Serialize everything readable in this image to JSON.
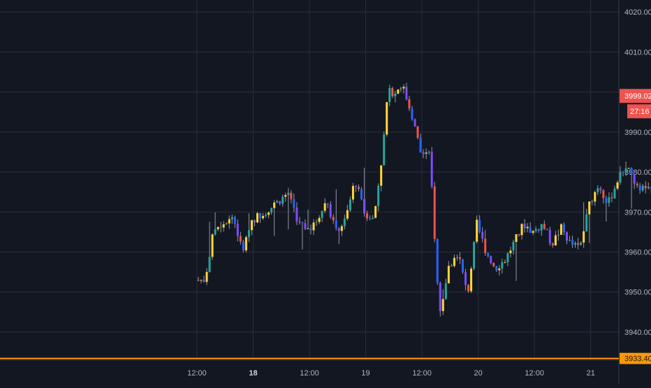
{
  "colors": {
    "background": "#131722",
    "grid": "#2a2e39",
    "axis_line": "#363a45",
    "axis_text": "#b2b5be",
    "palette": [
      "#ef5350",
      "#26a69a",
      "#fdd835",
      "#2962ff",
      "#7c4dff"
    ],
    "last_price_badge": "#ef5350",
    "orange_line": "#ff9800"
  },
  "price_axis": {
    "ticks": [
      "4020.00",
      "4010.00",
      "4000.00",
      "3990.00",
      "3980.00",
      "3970.00",
      "3960.00",
      "3950.00",
      "3940.00"
    ],
    "last_price_label": "3999.02",
    "countdown_label": "27:16",
    "bottom_level_label": "3933.40"
  },
  "time_axis": {
    "ticks": [
      "12:00",
      "18",
      "12:00",
      "19",
      "12:00",
      "20",
      "12:00",
      "21"
    ],
    "bold": [
      false,
      true,
      false,
      false,
      false,
      false,
      false,
      false
    ]
  },
  "chart_data": {
    "type": "candlestick",
    "ylim": [
      3933,
      4023
    ],
    "x_range_hours": [
      -42,
      90
    ],
    "x_ticks_hours": [
      0,
      12,
      24,
      36,
      48,
      60,
      72,
      84
    ],
    "interval_hours": 0.6,
    "last_price": 3999.02,
    "horizontal_level": 3933.4,
    "grid": true,
    "waypoints": [
      [
        0,
        3953
      ],
      [
        2,
        3953
      ],
      [
        4,
        3966
      ],
      [
        8,
        3969
      ],
      [
        10,
        3960
      ],
      [
        12,
        3968
      ],
      [
        16,
        3971
      ],
      [
        20,
        3975
      ],
      [
        22,
        3967
      ],
      [
        25,
        3966
      ],
      [
        28,
        3973
      ],
      [
        30,
        3965
      ],
      [
        32,
        3968
      ],
      [
        34,
        3978
      ],
      [
        36,
        3970
      ],
      [
        38,
        3968
      ],
      [
        40,
        3986
      ],
      [
        41,
        4000
      ],
      [
        42.5,
        4000
      ],
      [
        44,
        4002
      ],
      [
        46,
        3995
      ],
      [
        48,
        3985
      ],
      [
        50,
        3984
      ],
      [
        52,
        3944
      ],
      [
        54,
        3956
      ],
      [
        56,
        3960
      ],
      [
        58,
        3949
      ],
      [
        60,
        3967
      ],
      [
        62,
        3960
      ],
      [
        64,
        3956
      ],
      [
        66,
        3958
      ],
      [
        70,
        3967
      ],
      [
        72,
        3965
      ],
      [
        74,
        3967
      ],
      [
        76,
        3962
      ],
      [
        78,
        3966
      ],
      [
        80,
        3962
      ],
      [
        82,
        3961
      ],
      [
        84,
        3972
      ],
      [
        86,
        3977
      ],
      [
        88,
        3972
      ],
      [
        90,
        3978
      ],
      [
        92,
        3982
      ],
      [
        94,
        3976
      ],
      [
        96,
        3976
      ],
      [
        98,
        3974
      ],
      [
        100,
        3960
      ],
      [
        104,
        3960
      ],
      [
        106,
        3958
      ],
      [
        108,
        3960
      ],
      [
        110,
        3974
      ],
      [
        112,
        3972
      ],
      [
        114,
        3968
      ],
      [
        116,
        3970
      ],
      [
        118,
        3972
      ],
      [
        120,
        3980
      ],
      [
        122,
        3976
      ],
      [
        124,
        3986
      ],
      [
        126,
        3991
      ],
      [
        128,
        4006
      ],
      [
        129,
        3998
      ],
      [
        130,
        3990
      ],
      [
        132,
        3992
      ],
      [
        134,
        3988
      ],
      [
        136,
        3990
      ],
      [
        138,
        3994
      ],
      [
        140,
        3997
      ],
      [
        142,
        4000
      ],
      [
        143,
        3970
      ],
      [
        145,
        3975
      ],
      [
        147,
        3977
      ],
      [
        149,
        3975
      ],
      [
        151,
        3976
      ],
      [
        152,
        3988
      ],
      [
        154,
        3985
      ],
      [
        156,
        3992
      ],
      [
        157,
        3988
      ],
      [
        158,
        3987
      ],
      [
        159,
        3990
      ],
      [
        160,
        3973
      ],
      [
        161,
        3983
      ],
      [
        162,
        3990
      ],
      [
        164,
        3997
      ],
      [
        166,
        3992
      ],
      [
        168,
        3999.02
      ]
    ]
  }
}
